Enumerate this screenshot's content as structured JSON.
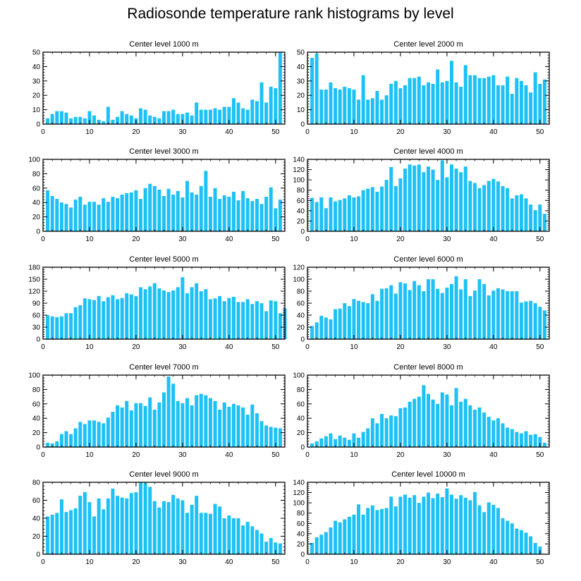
{
  "title": "Radiosonde temperature rank histograms by level",
  "colors": {
    "bar": "#1ec1f5",
    "axis": "#000000",
    "background": "#ffffff"
  },
  "chart_data": [
    {
      "type": "bar",
      "title": "Center level 1000 m",
      "xlim": [
        0,
        52
      ],
      "ylim": [
        0,
        50
      ],
      "xticks": [
        0,
        10,
        20,
        30,
        40,
        50
      ],
      "yticks": [
        0,
        10,
        20,
        30,
        40,
        50
      ],
      "values": [
        4,
        7,
        9,
        9,
        8,
        4,
        5,
        5,
        4,
        9,
        6,
        3,
        2,
        12,
        3,
        5,
        9,
        7,
        6,
        4,
        11,
        10,
        6,
        5,
        4,
        9,
        9,
        10,
        7,
        7,
        8,
        6,
        15,
        10,
        10,
        10,
        11,
        10,
        12,
        12,
        18,
        15,
        11,
        10,
        17,
        16,
        29,
        15,
        26,
        25,
        50
      ]
    },
    {
      "type": "bar",
      "title": "Center level 2000 m",
      "xlim": [
        0,
        52
      ],
      "ylim": [
        0,
        50
      ],
      "xticks": [
        0,
        10,
        20,
        30,
        40,
        50
      ],
      "yticks": [
        0,
        10,
        20,
        30,
        40,
        50
      ],
      "values": [
        46,
        49,
        24,
        24,
        29,
        25,
        24,
        26,
        25,
        24,
        17,
        34,
        17,
        18,
        23,
        17,
        20,
        28,
        30,
        25,
        27,
        32,
        32,
        33,
        27,
        29,
        28,
        38,
        29,
        30,
        44,
        29,
        26,
        41,
        34,
        34,
        32,
        32,
        33,
        34,
        27,
        27,
        33,
        21,
        32,
        30,
        27,
        22,
        36,
        28,
        31
      ]
    },
    {
      "type": "bar",
      "title": "Center level 3000 m",
      "xlim": [
        0,
        52
      ],
      "ylim": [
        0,
        100
      ],
      "xticks": [
        0,
        10,
        20,
        30,
        40,
        50
      ],
      "yticks": [
        0,
        20,
        40,
        60,
        80,
        100
      ],
      "values": [
        57,
        49,
        45,
        40,
        38,
        33,
        44,
        48,
        37,
        41,
        41,
        37,
        46,
        41,
        48,
        46,
        51,
        53,
        54,
        57,
        45,
        60,
        66,
        63,
        58,
        49,
        59,
        51,
        56,
        47,
        70,
        54,
        51,
        63,
        84,
        48,
        60,
        45,
        50,
        48,
        55,
        43,
        56,
        46,
        42,
        45,
        38,
        48,
        61,
        32,
        44
      ]
    },
    {
      "type": "bar",
      "title": "Center level 4000 m",
      "xlim": [
        0,
        52
      ],
      "ylim": [
        0,
        140
      ],
      "xticks": [
        0,
        10,
        20,
        30,
        40,
        50
      ],
      "yticks": [
        0,
        20,
        40,
        60,
        80,
        100,
        120,
        140
      ],
      "values": [
        65,
        57,
        66,
        45,
        66,
        58,
        61,
        64,
        70,
        66,
        68,
        80,
        83,
        86,
        77,
        87,
        100,
        125,
        88,
        103,
        122,
        130,
        128,
        130,
        115,
        126,
        120,
        100,
        138,
        105,
        130,
        122,
        115,
        126,
        98,
        94,
        84,
        90,
        98,
        102,
        97,
        88,
        84,
        64,
        70,
        72,
        64,
        52,
        41,
        52,
        34
      ]
    },
    {
      "type": "bar",
      "title": "Center level 5000 m",
      "xlim": [
        0,
        52
      ],
      "ylim": [
        0,
        180
      ],
      "xticks": [
        0,
        10,
        20,
        30,
        40,
        50
      ],
      "yticks": [
        0,
        30,
        60,
        90,
        120,
        150,
        180
      ],
      "values": [
        60,
        57,
        55,
        57,
        65,
        65,
        80,
        85,
        102,
        100,
        98,
        108,
        95,
        105,
        110,
        100,
        103,
        115,
        112,
        108,
        130,
        125,
        132,
        140,
        127,
        122,
        118,
        122,
        130,
        155,
        115,
        130,
        140,
        120,
        125,
        100,
        102,
        108,
        95,
        103,
        106,
        93,
        93,
        100,
        88,
        95,
        90,
        70,
        97,
        95,
        65,
        77
      ]
    },
    {
      "type": "bar",
      "title": "Center level 6000 m",
      "xlim": [
        0,
        52
      ],
      "ylim": [
        0,
        120
      ],
      "xticks": [
        0,
        10,
        20,
        30,
        40,
        50
      ],
      "yticks": [
        0,
        20,
        40,
        60,
        80,
        100,
        120
      ],
      "values": [
        22,
        28,
        39,
        36,
        33,
        50,
        51,
        60,
        55,
        67,
        64,
        62,
        60,
        75,
        64,
        84,
        85,
        90,
        76,
        95,
        93,
        82,
        97,
        90,
        80,
        100,
        100,
        84,
        77,
        86,
        92,
        105,
        83,
        100,
        72,
        81,
        100,
        92,
        73,
        81,
        85,
        83,
        80,
        80,
        80,
        61,
        63,
        64,
        60,
        54,
        48
      ]
    },
    {
      "type": "bar",
      "title": "Center level 7000 m",
      "xlim": [
        0,
        52
      ],
      "ylim": [
        0,
        100
      ],
      "xticks": [
        0,
        10,
        20,
        30,
        40,
        50
      ],
      "yticks": [
        0,
        20,
        40,
        60,
        80,
        100
      ],
      "values": [
        6,
        5,
        8,
        18,
        22,
        18,
        26,
        35,
        32,
        37,
        37,
        35,
        33,
        41,
        49,
        58,
        55,
        64,
        51,
        61,
        61,
        57,
        69,
        52,
        62,
        76,
        98,
        88,
        64,
        61,
        68,
        58,
        72,
        74,
        72,
        68,
        64,
        52,
        62,
        56,
        60,
        58,
        55,
        45,
        59,
        47,
        36,
        30,
        28,
        27,
        26
      ]
    },
    {
      "type": "bar",
      "title": "Center level 8000 m",
      "xlim": [
        0,
        52
      ],
      "ylim": [
        0,
        100
      ],
      "xticks": [
        0,
        10,
        20,
        30,
        40,
        50
      ],
      "yticks": [
        0,
        20,
        40,
        60,
        80,
        100
      ],
      "values": [
        5,
        8,
        12,
        15,
        19,
        11,
        16,
        13,
        10,
        19,
        13,
        21,
        26,
        40,
        33,
        46,
        40,
        44,
        43,
        54,
        55,
        63,
        67,
        70,
        86,
        74,
        66,
        60,
        76,
        73,
        58,
        82,
        63,
        67,
        58,
        52,
        55,
        48,
        42,
        37,
        40,
        33,
        27,
        25,
        21,
        19,
        22,
        17,
        18,
        14,
        6
      ]
    },
    {
      "type": "bar",
      "title": "Center level 9000 m",
      "xlim": [
        0,
        52
      ],
      "ylim": [
        0,
        80
      ],
      "xticks": [
        0,
        10,
        20,
        30,
        40,
        50
      ],
      "yticks": [
        0,
        20,
        40,
        60,
        80
      ],
      "values": [
        42,
        44,
        46,
        61,
        47,
        49,
        51,
        65,
        69,
        58,
        42,
        62,
        50,
        62,
        73,
        65,
        63,
        62,
        68,
        69,
        80,
        79,
        75,
        59,
        52,
        59,
        58,
        66,
        62,
        60,
        46,
        55,
        65,
        46,
        46,
        45,
        56,
        53,
        40,
        43,
        40,
        40,
        32,
        36,
        31,
        27,
        23,
        14,
        18,
        13,
        12
      ]
    },
    {
      "type": "bar",
      "title": "Center level 10000 m",
      "xlim": [
        0,
        52
      ],
      "ylim": [
        0,
        140
      ],
      "xticks": [
        0,
        10,
        20,
        30,
        40,
        50
      ],
      "yticks": [
        0,
        20,
        40,
        60,
        80,
        100,
        120,
        140
      ],
      "values": [
        22,
        33,
        38,
        43,
        52,
        65,
        62,
        68,
        73,
        77,
        97,
        77,
        90,
        95,
        86,
        88,
        90,
        112,
        93,
        112,
        116,
        110,
        115,
        100,
        112,
        120,
        109,
        118,
        111,
        128,
        116,
        108,
        115,
        110,
        105,
        121,
        95,
        82,
        101,
        96,
        90,
        70,
        65,
        60,
        50,
        47,
        42,
        35,
        22,
        15,
        0
      ]
    }
  ]
}
